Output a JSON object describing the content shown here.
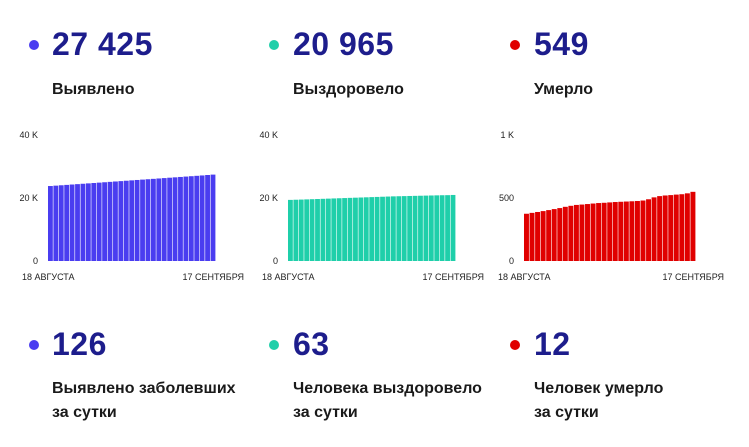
{
  "stats": [
    {
      "total": "27 425",
      "label": "Выявлено",
      "color": "#4a3df0"
    },
    {
      "total": "20 965",
      "label": "Выздоровело",
      "color": "#1fcfaa"
    },
    {
      "total": "549",
      "label": "Умерло",
      "color": "#e00000"
    }
  ],
  "daily": [
    {
      "value": "126",
      "line1": "Выявлено заболевших",
      "line2": "за сутки",
      "color": "#4a3df0"
    },
    {
      "value": "63",
      "line1": "Человека выздоровело",
      "line2": "за сутки",
      "color": "#1fcfaa"
    },
    {
      "value": "12",
      "line1": "Человек умерло",
      "line2": "за сутки",
      "color": "#e00000"
    }
  ],
  "chart_data": [
    {
      "type": "bar",
      "series": [
        {
          "color": "#4a3df0",
          "values": [
            23800,
            23920,
            24040,
            24160,
            24280,
            24400,
            24520,
            24640,
            24760,
            24880,
            25000,
            25120,
            25240,
            25360,
            25480,
            25600,
            25720,
            25840,
            25960,
            26080,
            26200,
            26320,
            26440,
            26560,
            26680,
            26800,
            26920,
            27040,
            27160,
            27299,
            27425
          ]
        }
      ],
      "ylim": [
        0,
        40000
      ],
      "yticks": [
        {
          "value": 0,
          "label": "0"
        },
        {
          "value": 20000,
          "label": "20 K"
        },
        {
          "value": 40000,
          "label": "40 K"
        }
      ],
      "x_start_label": "18 АВГУСТА",
      "x_end_label": "17 СЕНТЯБРЯ"
    },
    {
      "type": "bar",
      "series": [
        {
          "color": "#1fcfaa",
          "values": [
            19400,
            19450,
            19500,
            19560,
            19620,
            19680,
            19740,
            19800,
            19860,
            19920,
            19980,
            20040,
            20100,
            20160,
            20220,
            20280,
            20340,
            20400,
            20460,
            20520,
            20560,
            20600,
            20640,
            20680,
            20720,
            20760,
            20800,
            20840,
            20880,
            20902,
            20965
          ]
        }
      ],
      "ylim": [
        0,
        40000
      ],
      "yticks": [
        {
          "value": 0,
          "label": "0"
        },
        {
          "value": 20000,
          "label": "20 K"
        },
        {
          "value": 40000,
          "label": "40 K"
        }
      ],
      "x_start_label": "18 АВГУСТА",
      "x_end_label": "17 СЕНТЯБРЯ"
    },
    {
      "type": "bar",
      "series": [
        {
          "color": "#e00000",
          "values": [
            375,
            382,
            389,
            396,
            404,
            412,
            420,
            430,
            438,
            445,
            448,
            452,
            456,
            460,
            462,
            465,
            468,
            470,
            472,
            474,
            476,
            480,
            490,
            505,
            515,
            520,
            523,
            527,
            530,
            537,
            549
          ]
        }
      ],
      "ylim": [
        0,
        1000
      ],
      "yticks": [
        {
          "value": 0,
          "label": "0"
        },
        {
          "value": 500,
          "label": "500"
        },
        {
          "value": 1000,
          "label": "1 K"
        }
      ],
      "x_start_label": "18 АВГУСТА",
      "x_end_label": "17 СЕНТЯБРЯ"
    }
  ]
}
